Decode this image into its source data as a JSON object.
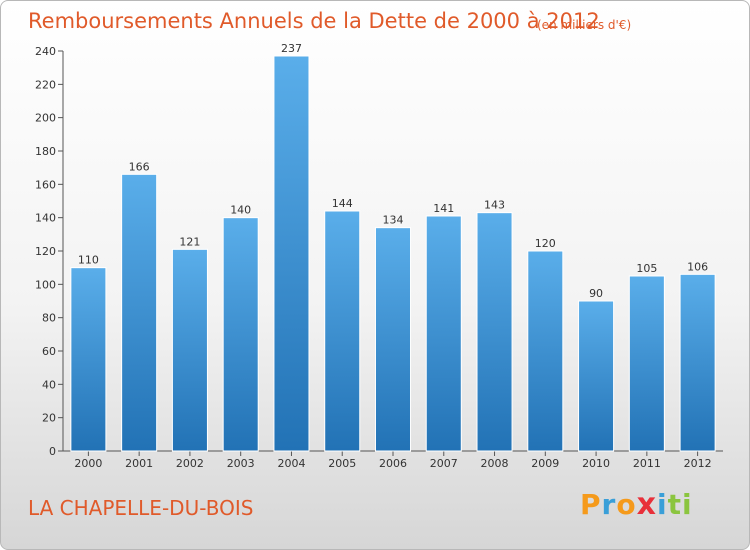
{
  "header": {
    "title": "Remboursements Annuels de la Dette de 2000 à 2012",
    "unit": "(en milliers d'€)"
  },
  "footer": {
    "town": "LA CHAPELLE-DU-BOIS",
    "logo": "Proxiti"
  },
  "colors": {
    "title": "#e05a2a",
    "bar_top": "#5aaeea",
    "bar_bottom": "#2272b5"
  },
  "chart_data": {
    "type": "bar",
    "title": "Remboursements Annuels de la Dette de 2000 à 2012",
    "xlabel": "",
    "ylabel": "",
    "categories": [
      "2000",
      "2001",
      "2002",
      "2003",
      "2004",
      "2005",
      "2006",
      "2007",
      "2008",
      "2009",
      "2010",
      "2011",
      "2012"
    ],
    "values": [
      110,
      166,
      121,
      140,
      237,
      144,
      134,
      141,
      143,
      120,
      90,
      105,
      106
    ],
    "ylim": [
      0,
      240
    ],
    "yticks": [
      0,
      20,
      40,
      60,
      80,
      100,
      120,
      140,
      160,
      180,
      200,
      220,
      240
    ],
    "grid": false,
    "data_labels": true
  }
}
